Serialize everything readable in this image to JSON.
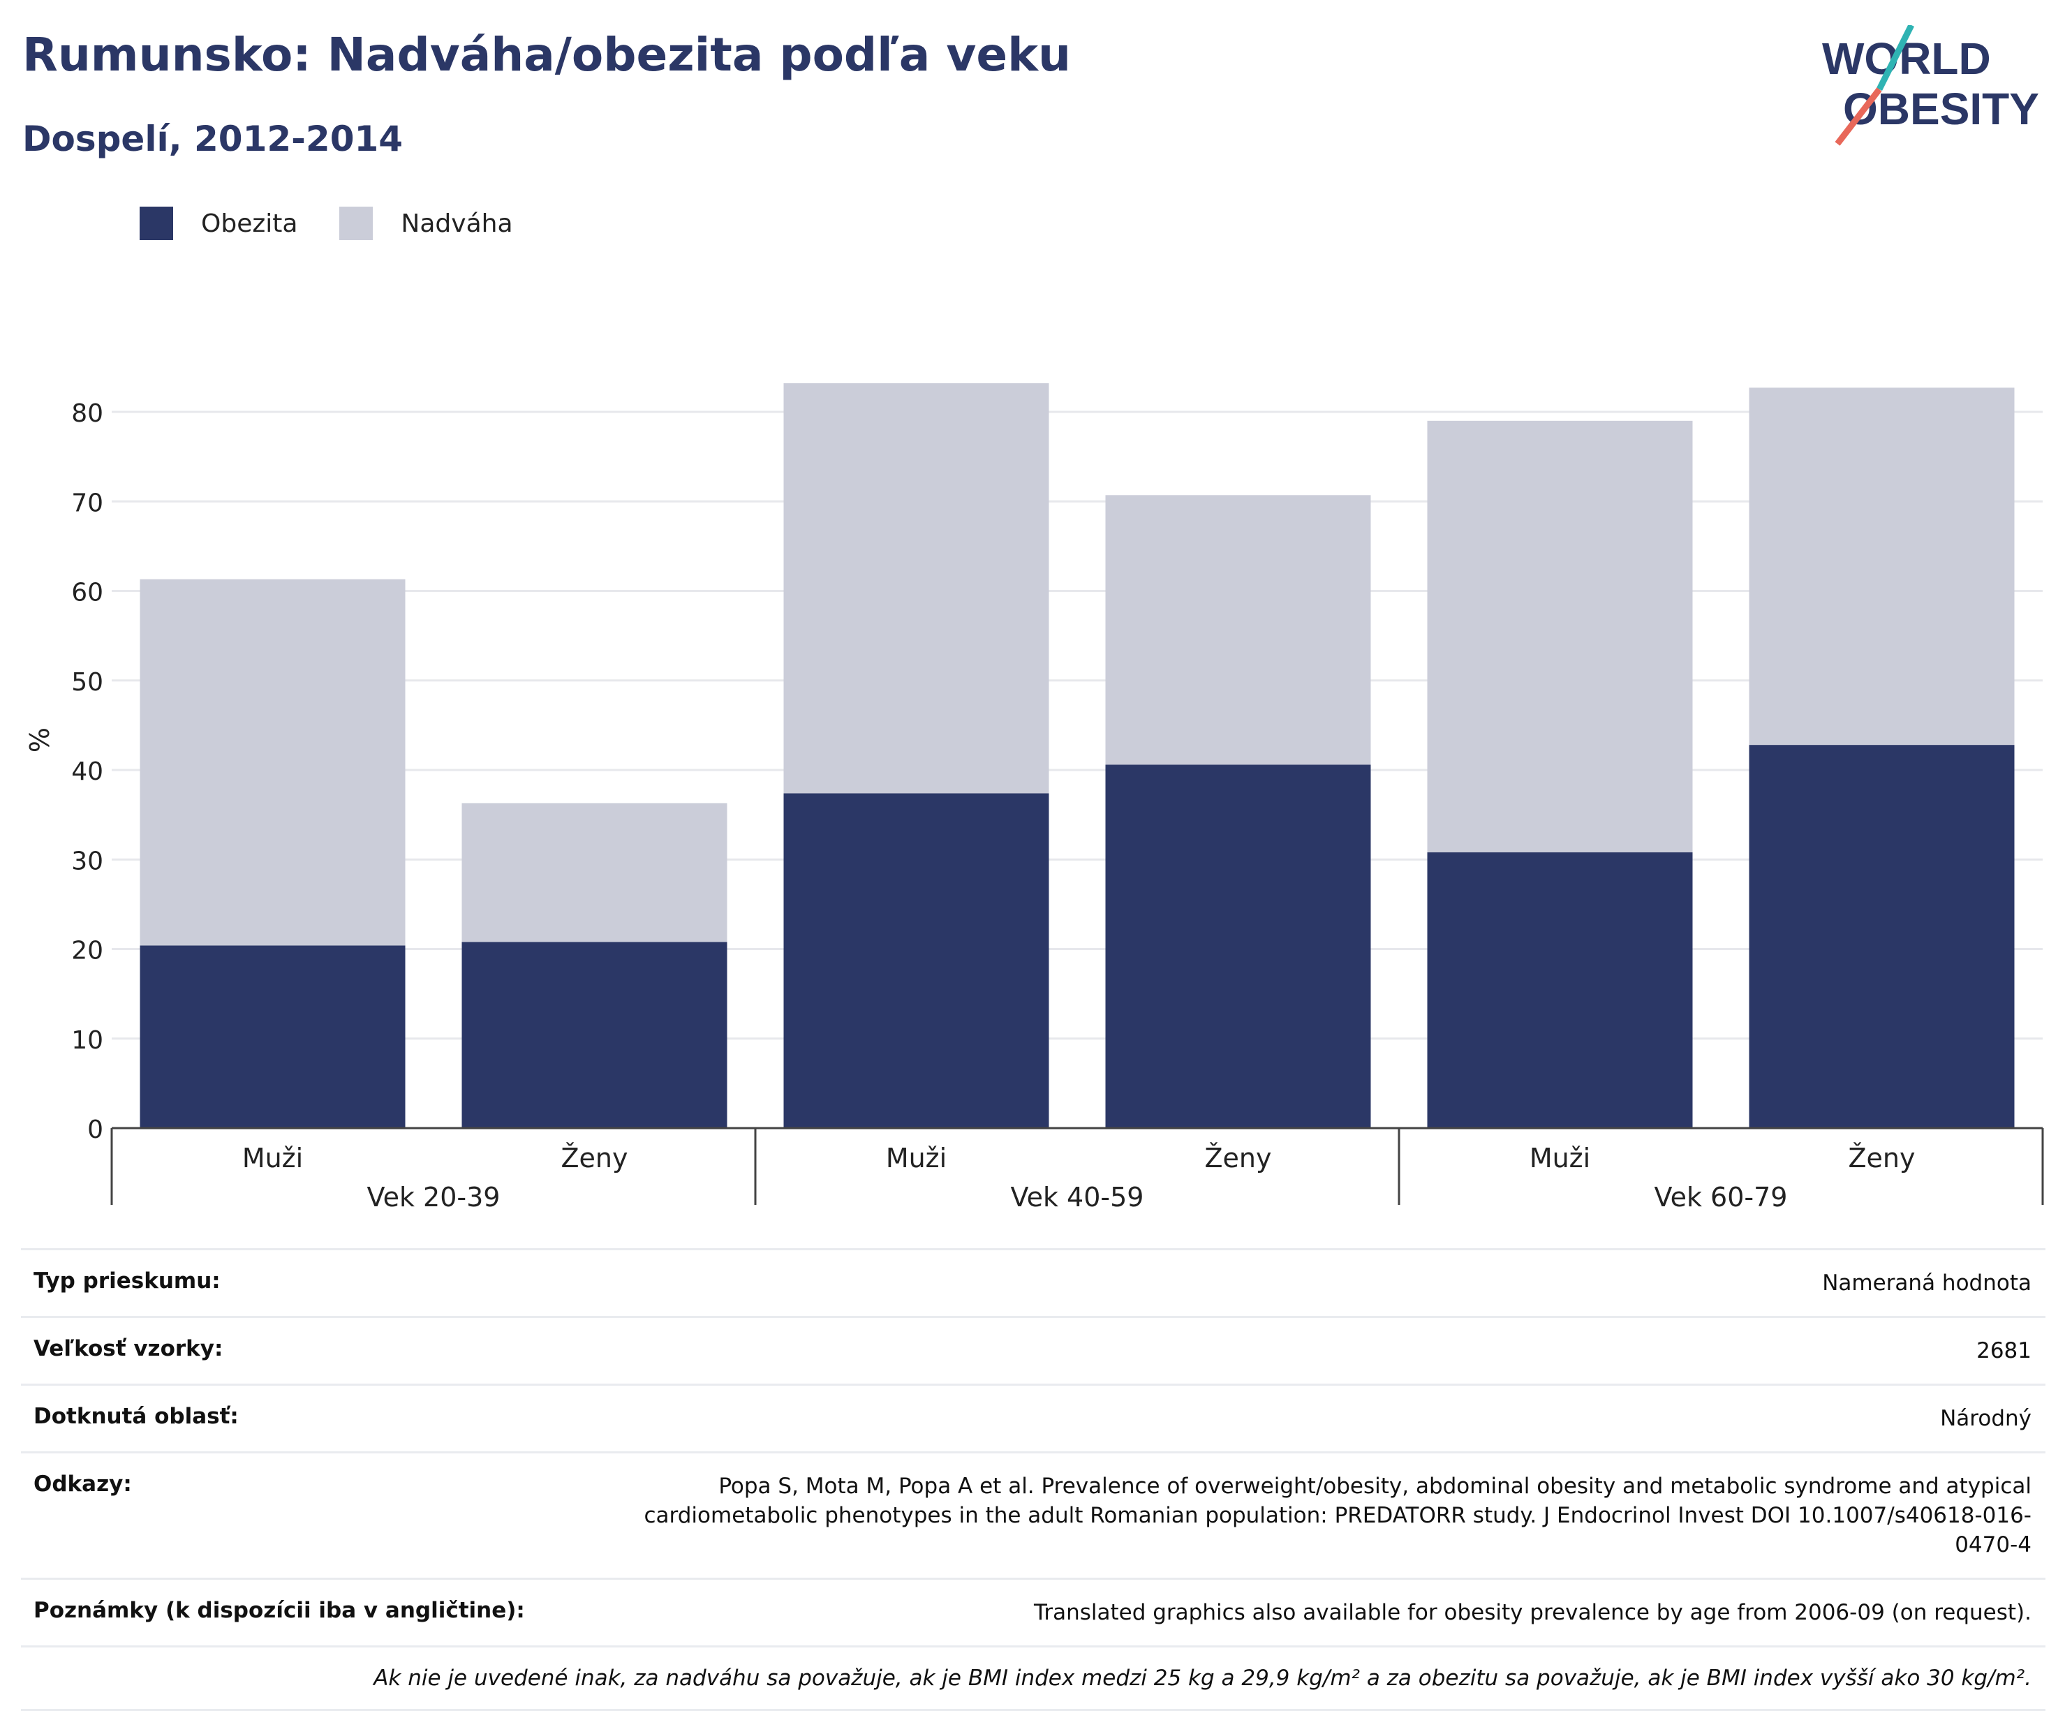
{
  "header": {
    "title": "Rumunsko: Nadváha/obezita podľa veku",
    "subtitle": "Dospelí, 2012-2014"
  },
  "logo": {
    "line1": "WORLD",
    "line2": "OBESITY",
    "primary_color": "#2b3766",
    "accent_teal": "#2fb3b3",
    "accent_red": "#e8685a"
  },
  "legend": {
    "items": [
      {
        "label": "Obezita",
        "color": "#2b3766"
      },
      {
        "label": "Nadváha",
        "color": "#cbcdd9"
      }
    ]
  },
  "chart_data": {
    "type": "bar",
    "stacked": true,
    "ylabel": "%",
    "ylim": [
      0,
      85
    ],
    "yticks": [
      0,
      10,
      20,
      30,
      40,
      50,
      60,
      70,
      80
    ],
    "grid": true,
    "legend_position": "top-left",
    "groups": [
      "Vek 20-39",
      "Vek 40-59",
      "Vek 60-79"
    ],
    "categories": [
      "Muži",
      "Ženy",
      "Muži",
      "Ženy",
      "Muži",
      "Ženy"
    ],
    "category_group": [
      0,
      0,
      1,
      1,
      2,
      2
    ],
    "series": [
      {
        "name": "Obezita",
        "color": "#2b3766",
        "values": [
          20.4,
          20.8,
          37.4,
          40.6,
          30.8,
          42.8
        ]
      },
      {
        "name": "Nadváha",
        "color": "#cbcdd9",
        "values": [
          40.9,
          15.5,
          45.8,
          30.1,
          48.2,
          39.9
        ]
      }
    ]
  },
  "info": {
    "survey_type": {
      "label": "Typ prieskumu:",
      "value": "Nameraná hodnota"
    },
    "sample_size": {
      "label": "Veľkosť vzorky:",
      "value": "2681"
    },
    "area": {
      "label": "Dotknutá oblasť:",
      "value": "Národný"
    },
    "references": {
      "label": "Odkazy:",
      "value": "Popa S, Mota M, Popa A et al. Prevalence of overweight/obesity, abdominal obesity and metabolic syndrome and atypical cardiometabolic phenotypes in the adult Romanian population: PREDATORR study. J Endocrinol Invest DOI 10.1007/s40618-016-0470-4"
    },
    "notes": {
      "label": "Poznámky (k dispozícii iba v angličtine):",
      "value": "Translated graphics also available for obesity prevalence by age from 2006-09 (on request)."
    },
    "footnote": "Ak nie je uvedené inak, za nadváhu sa považuje, ak je BMI index medzi 25 kg a 29,9 kg/m² a za obezitu sa považuje, ak je BMI index vyšší ako 30 kg/m²."
  }
}
